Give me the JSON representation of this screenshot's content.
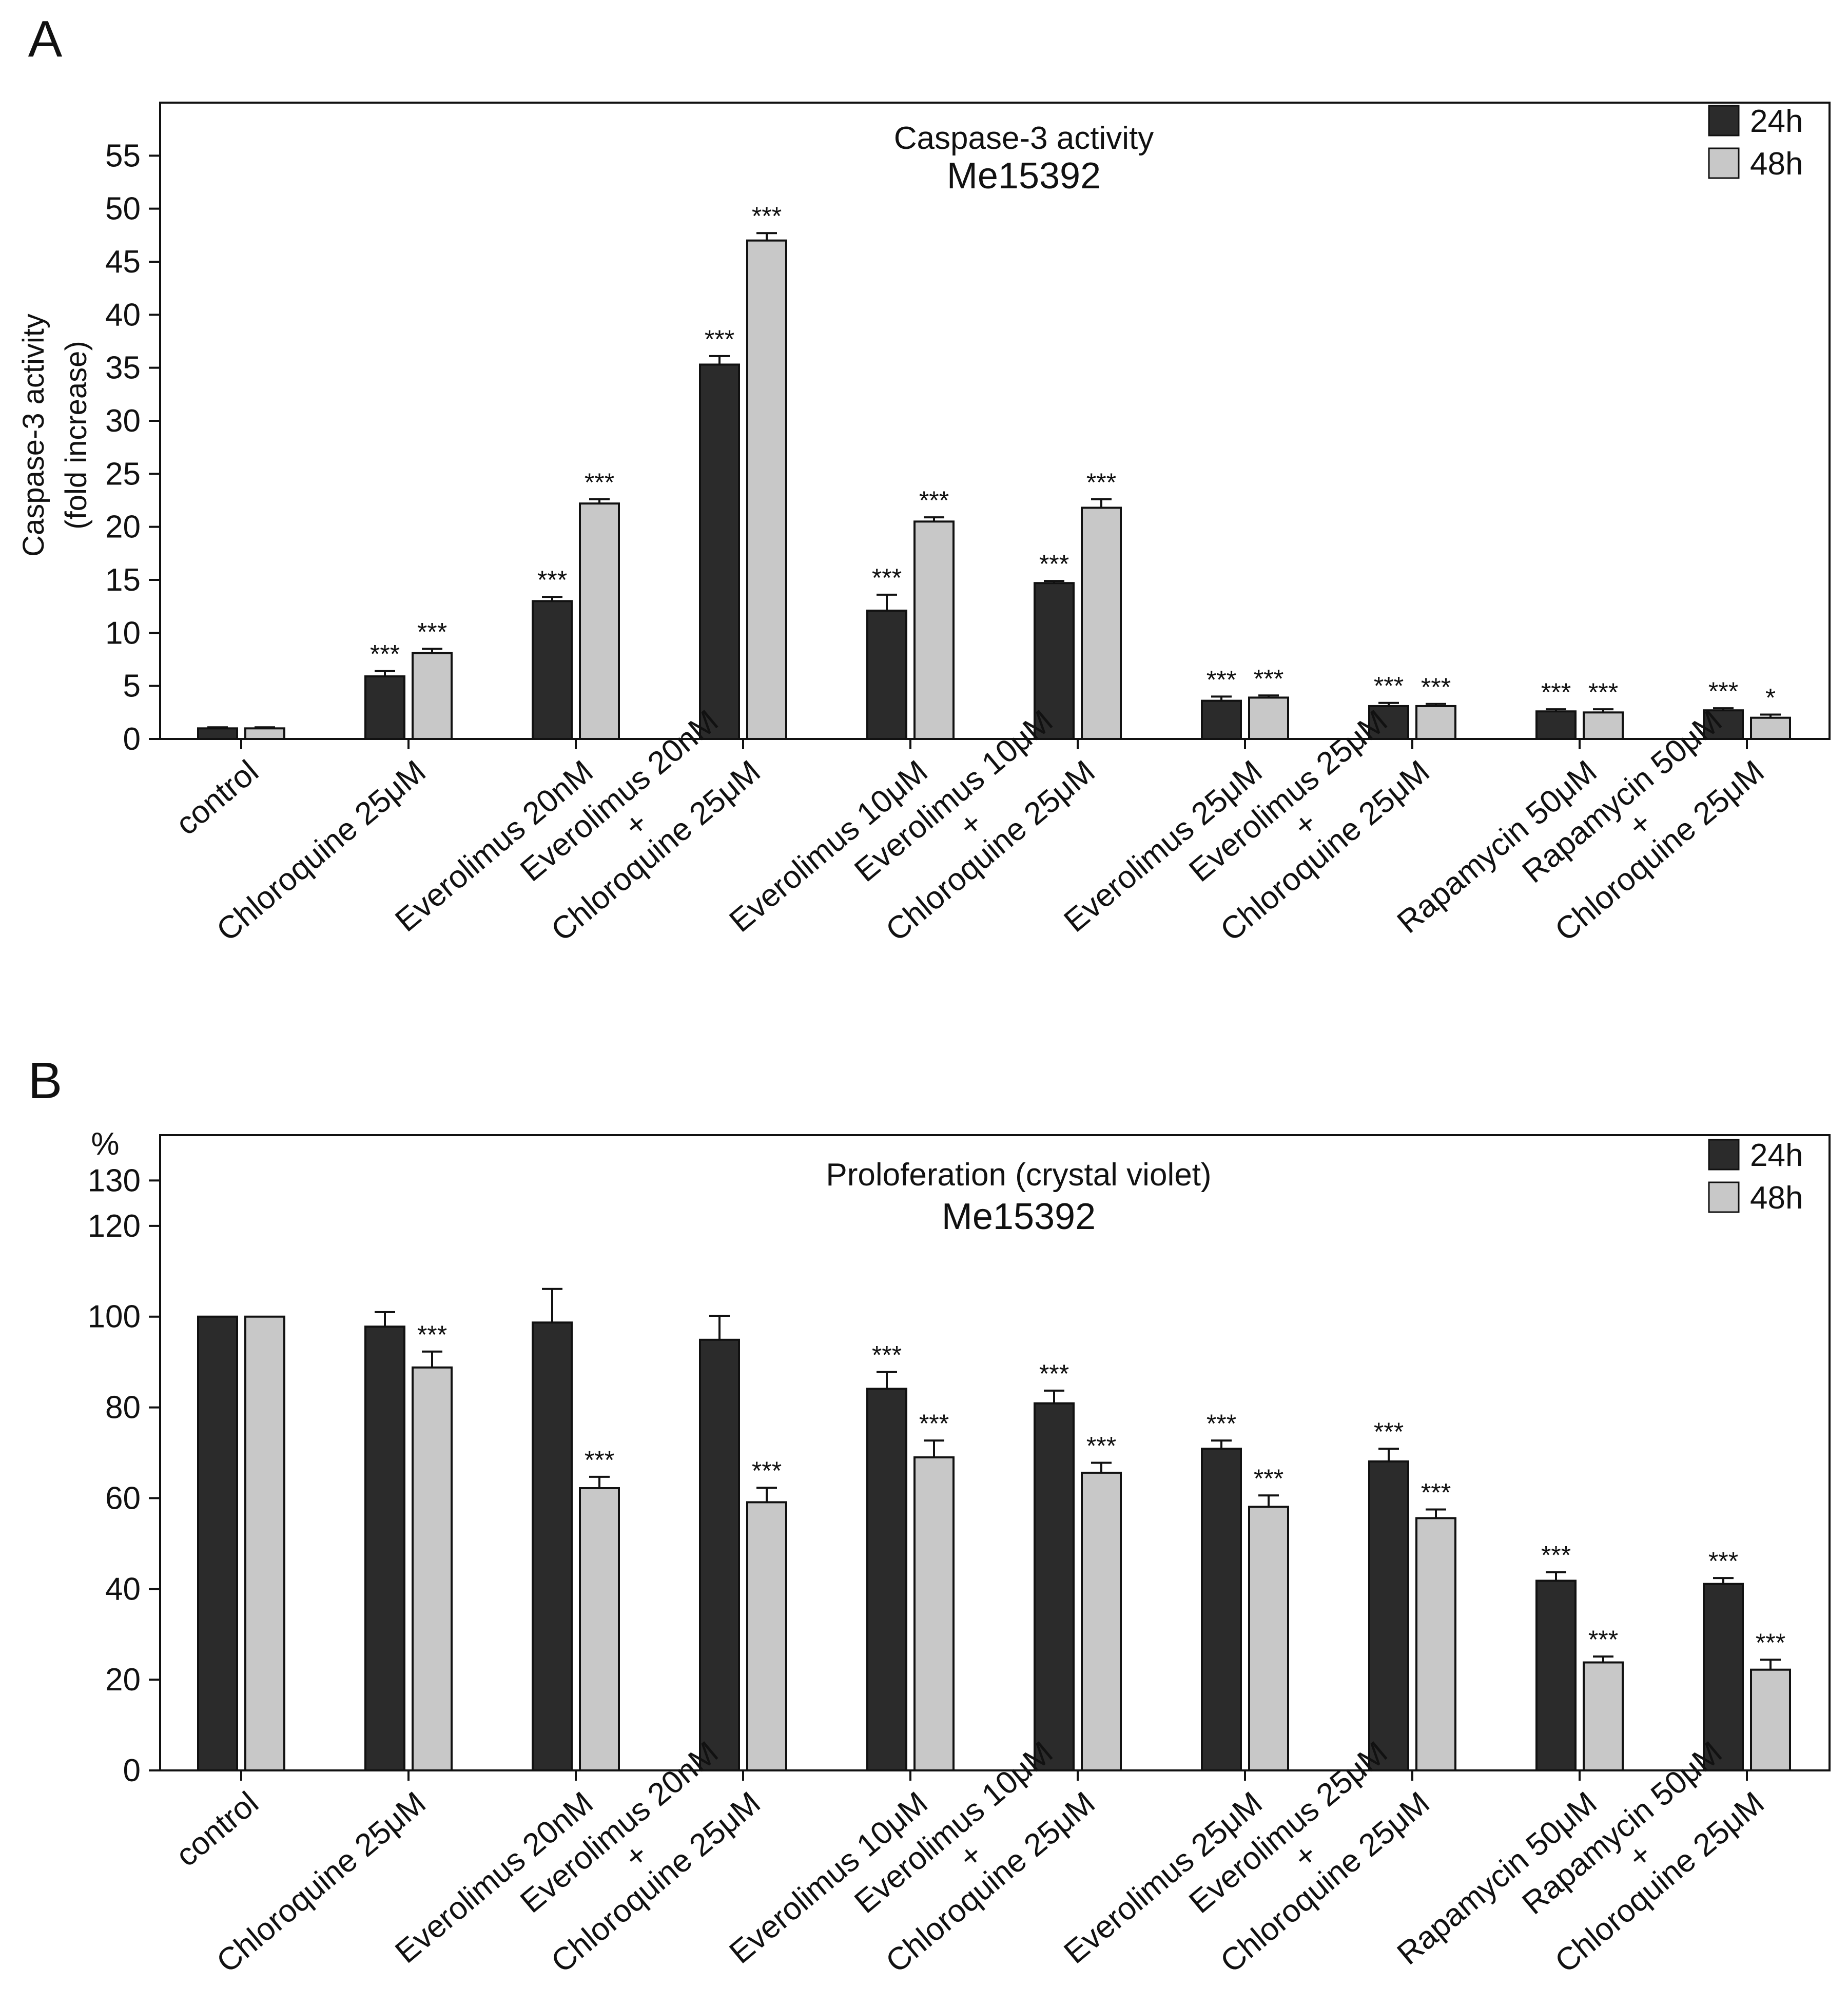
{
  "chart_data": [
    {
      "type": "bar",
      "panel_label": "A",
      "title": "Caspase-3 activity",
      "subtitle": "Me15392",
      "ylabel_lines": [
        "Caspase-3 activity",
        "(fold increase)"
      ],
      "yunit": "",
      "ylim": [
        0,
        60
      ],
      "yticks": [
        0,
        5,
        10,
        15,
        20,
        25,
        30,
        35,
        40,
        45,
        50,
        55
      ],
      "grid": false,
      "legend_position": "top-right",
      "categories": [
        [
          "control"
        ],
        [
          "Chloroquine 25μM"
        ],
        [
          "Everolimus 20nM"
        ],
        [
          "Everolimus 20nM",
          "+",
          "Chloroquine 25μM"
        ],
        [
          "Everolimus 10μM"
        ],
        [
          "Everolimus 10μM",
          "+",
          "Chloroquine 25μM"
        ],
        [
          "Everolimus 25μM"
        ],
        [
          "Everolimus 25μM",
          "+",
          "Chloroquine 25μM"
        ],
        [
          "Rapamycin 50μM"
        ],
        [
          "Rapamycin 50μM",
          "+",
          "Chloroquine 25μM"
        ]
      ],
      "series": [
        {
          "name": "24h",
          "color": "#2b2b2b",
          "values": [
            1.0,
            5.9,
            13.0,
            35.3,
            12.1,
            14.7,
            3.6,
            3.1,
            2.6,
            2.7
          ],
          "errors": [
            0.1,
            0.5,
            0.4,
            0.8,
            1.5,
            0.2,
            0.4,
            0.3,
            0.2,
            0.2
          ],
          "significance": [
            "",
            "***",
            "***",
            "***",
            "***",
            "***",
            "***",
            "***",
            "***",
            "***"
          ]
        },
        {
          "name": "48h",
          "color": "#c8c8c8",
          "values": [
            1.0,
            8.1,
            22.2,
            47.0,
            20.5,
            21.8,
            3.9,
            3.1,
            2.5,
            2.0
          ],
          "errors": [
            0.1,
            0.4,
            0.4,
            0.7,
            0.4,
            0.8,
            0.2,
            0.2,
            0.3,
            0.3
          ],
          "significance": [
            "",
            "***",
            "***",
            "***",
            "***",
            "***",
            "***",
            "***",
            "***",
            "*"
          ]
        }
      ]
    },
    {
      "type": "bar",
      "panel_label": "B",
      "title": "Proloferation (crystal violet)",
      "subtitle": "Me15392",
      "ylabel_lines": [],
      "yunit": "%",
      "ylim": [
        0,
        140
      ],
      "yticks": [
        0,
        20,
        40,
        60,
        80,
        100,
        120,
        130
      ],
      "grid": false,
      "legend_position": "top-right",
      "categories": [
        [
          "control"
        ],
        [
          "Chloroquine 25μM"
        ],
        [
          "Everolimus 20nM"
        ],
        [
          "Everolimus 20nM",
          "+",
          "Chloroquine 25μM"
        ],
        [
          "Everolimus 10μM"
        ],
        [
          "Everolimus 10μM",
          "+",
          "Chloroquine 25μM"
        ],
        [
          "Everolimus 25μM"
        ],
        [
          "Everolimus 25μM",
          "+",
          "Chloroquine 25μM"
        ],
        [
          "Rapamycin 50μM"
        ],
        [
          "Rapamycin 50μM",
          "+",
          "Chloroquine 25μM"
        ]
      ],
      "series": [
        {
          "name": "24h",
          "color": "#2b2b2b",
          "values": [
            100,
            97.8,
            98.7,
            94.9,
            84.1,
            80.9,
            70.9,
            68.1,
            41.8,
            41.1
          ],
          "errors": [
            0,
            3.2,
            7.4,
            5.3,
            3.7,
            2.8,
            1.8,
            2.8,
            1.9,
            1.3
          ],
          "significance": [
            "",
            "",
            "",
            "",
            "***",
            "***",
            "***",
            "***",
            "***",
            "***"
          ]
        },
        {
          "name": "48h",
          "color": "#c8c8c8",
          "values": [
            100,
            88.8,
            62.2,
            59.1,
            69.0,
            65.6,
            58.1,
            55.6,
            23.8,
            22.2
          ],
          "errors": [
            0,
            3.5,
            2.5,
            3.2,
            3.7,
            2.2,
            2.5,
            1.9,
            1.3,
            2.2
          ],
          "significance": [
            "",
            "***",
            "***",
            "***",
            "***",
            "***",
            "***",
            "***",
            "***",
            "***"
          ]
        }
      ]
    }
  ]
}
